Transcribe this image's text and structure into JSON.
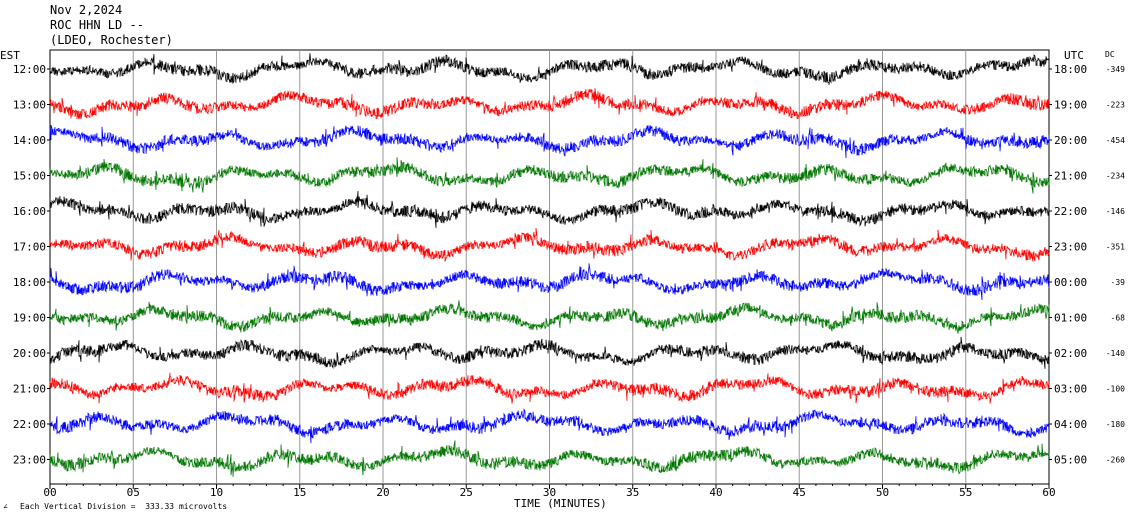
{
  "header": {
    "date": "Nov 2,2024",
    "station": "ROC HHN LD --",
    "network": "(LDEO, Rochester)"
  },
  "left_zone": "EST",
  "right_zone": "UTC",
  "dc_label": "DC",
  "xlabel": "TIME (MINUTES)",
  "footnote": "Each Vertical Division =  333.33 microvolts",
  "chart_data": {
    "type": "line",
    "title": "",
    "xlabel": "TIME (MINUTES)",
    "xlim": [
      0,
      60
    ],
    "x_ticks": [
      "00",
      "05",
      "10",
      "15",
      "20",
      "25",
      "30",
      "35",
      "40",
      "45",
      "50",
      "55",
      "60"
    ],
    "grid": "vertical lines every 5 minutes",
    "colors_cycle": [
      "#000000",
      "#ff0000",
      "#0000ff",
      "#007700"
    ],
    "rows": [
      {
        "est": "12:00",
        "utc": "18:00",
        "dc": "-349",
        "color": "#000000"
      },
      {
        "est": "13:00",
        "utc": "19:00",
        "dc": "-223",
        "color": "#ff0000"
      },
      {
        "est": "14:00",
        "utc": "20:00",
        "dc": "-454",
        "color": "#0000ff"
      },
      {
        "est": "15:00",
        "utc": "21:00",
        "dc": "-234",
        "color": "#007700"
      },
      {
        "est": "16:00",
        "utc": "22:00",
        "dc": "-146",
        "color": "#000000"
      },
      {
        "est": "17:00",
        "utc": "23:00",
        "dc": "-351",
        "color": "#ff0000"
      },
      {
        "est": "18:00",
        "utc": "00:00",
        "dc": "-39",
        "color": "#0000ff"
      },
      {
        "est": "19:00",
        "utc": "01:00",
        "dc": "-68",
        "color": "#007700"
      },
      {
        "est": "20:00",
        "utc": "02:00",
        "dc": "-140",
        "color": "#000000"
      },
      {
        "est": "21:00",
        "utc": "03:00",
        "dc": "-100",
        "color": "#ff0000"
      },
      {
        "est": "22:00",
        "utc": "04:00",
        "dc": "-180",
        "color": "#0000ff"
      },
      {
        "est": "23:00",
        "utc": "05:00",
        "dc": "-260",
        "color": "#007700"
      }
    ]
  }
}
